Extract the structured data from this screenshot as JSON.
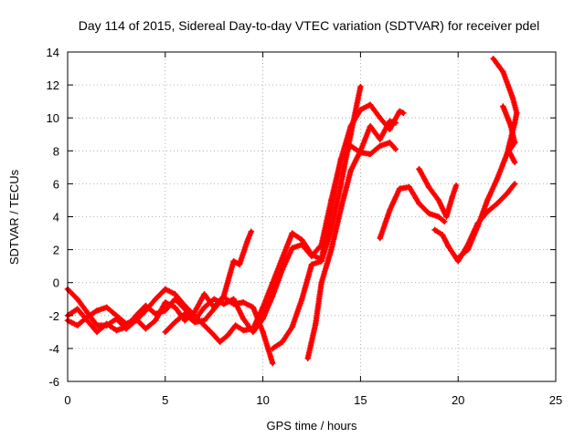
{
  "chart_data": {
    "type": "scatter",
    "title": "Day 114 of 2015, Sidereal Day-to-day VTEC variation (SDTVAR) for receiver pdel",
    "xlabel": "GPS time / hours",
    "ylabel": "SDTVAR / TECUs",
    "xlim": [
      0,
      25
    ],
    "ylim": [
      -6,
      14
    ],
    "xticks": [
      0,
      5,
      10,
      15,
      20,
      25
    ],
    "yticks": [
      -6,
      -4,
      -2,
      0,
      2,
      4,
      6,
      8,
      10,
      12,
      14
    ],
    "grid": true,
    "legend": "none",
    "marker": "plus",
    "color": "#ff0000",
    "series": [
      {
        "points": [
          [
            0.0,
            -0.4
          ],
          [
            0.5,
            -1.0
          ],
          [
            1.0,
            -1.8
          ],
          [
            1.5,
            -2.6
          ],
          [
            2.0,
            -2.6
          ],
          [
            2.5,
            -2.2
          ],
          [
            3.0,
            -2.8
          ],
          [
            3.5,
            -2.3
          ],
          [
            4.0,
            -1.7
          ],
          [
            4.5,
            -1.0
          ],
          [
            5.0,
            -0.4
          ],
          [
            5.5,
            -0.7
          ],
          [
            6.0,
            -1.4
          ],
          [
            6.5,
            -2.0
          ],
          [
            7.0,
            -2.6
          ],
          [
            7.5,
            -3.2
          ],
          [
            7.8,
            -3.6
          ],
          [
            8.2,
            -3.2
          ],
          [
            8.6,
            -2.6
          ],
          [
            9.0,
            -2.9
          ],
          [
            9.5,
            -2.8
          ],
          [
            10.0,
            -1.5
          ],
          [
            10.5,
            0.0
          ],
          [
            11.0,
            1.5
          ],
          [
            11.5,
            3.0
          ],
          [
            12.0,
            2.6
          ],
          [
            12.5,
            1.7
          ],
          [
            13.0,
            1.4
          ],
          [
            13.5,
            4.5
          ],
          [
            14.0,
            7.5
          ],
          [
            14.5,
            9.5
          ],
          [
            15.0,
            10.5
          ],
          [
            15.5,
            10.8
          ],
          [
            16.0,
            10.0
          ],
          [
            16.5,
            9.3
          ],
          [
            17.0,
            10.4
          ],
          [
            17.2,
            10.3
          ]
        ]
      },
      {
        "points": [
          [
            0.0,
            -2.0
          ],
          [
            0.5,
            -1.6
          ],
          [
            1.0,
            -2.3
          ],
          [
            1.5,
            -3.0
          ],
          [
            2.0,
            -2.5
          ],
          [
            2.5,
            -2.9
          ],
          [
            3.0,
            -2.7
          ],
          [
            3.5,
            -2.0
          ],
          [
            4.0,
            -1.4
          ],
          [
            4.5,
            -1.9
          ],
          [
            5.0,
            -1.7
          ],
          [
            5.5,
            -1.0
          ],
          [
            6.0,
            -1.6
          ],
          [
            6.5,
            -2.3
          ],
          [
            7.0,
            -1.5
          ],
          [
            7.5,
            -1.0
          ],
          [
            8.0,
            -1.3
          ],
          [
            8.5,
            -1.0
          ],
          [
            9.0,
            -2.2
          ],
          [
            9.5,
            -3.0
          ],
          [
            10.0,
            -2.2
          ],
          [
            10.5,
            -0.8
          ],
          [
            11.0,
            0.8
          ],
          [
            11.5,
            2.1
          ],
          [
            12.0,
            2.3
          ],
          [
            12.5,
            1.6
          ],
          [
            13.0,
            2.3
          ],
          [
            13.5,
            5.0
          ],
          [
            14.0,
            7.5
          ],
          [
            14.5,
            8.3
          ],
          [
            15.0,
            7.9
          ],
          [
            15.5,
            7.8
          ],
          [
            16.0,
            8.3
          ],
          [
            16.5,
            8.5
          ],
          [
            16.8,
            8.1
          ]
        ]
      },
      {
        "points": [
          [
            0.0,
            -2.3
          ],
          [
            0.5,
            -2.6
          ],
          [
            1.0,
            -2.1
          ],
          [
            1.5,
            -1.7
          ],
          [
            2.0,
            -1.5
          ],
          [
            2.5,
            -2.0
          ],
          [
            3.0,
            -2.5
          ],
          [
            3.5,
            -2.2
          ],
          [
            4.0,
            -2.8
          ],
          [
            4.5,
            -2.3
          ],
          [
            5.0,
            -1.2
          ],
          [
            5.5,
            -1.5
          ],
          [
            6.0,
            -2.3
          ],
          [
            6.5,
            -1.8
          ],
          [
            7.0,
            -0.7
          ],
          [
            7.5,
            -1.5
          ],
          [
            8.0,
            -0.8
          ],
          [
            8.5,
            1.3
          ],
          [
            8.8,
            1.1
          ],
          [
            9.2,
            2.5
          ],
          [
            9.4,
            3.1
          ]
        ]
      },
      {
        "points": [
          [
            5.0,
            -3.0
          ],
          [
            5.5,
            -2.4
          ],
          [
            6.0,
            -1.9
          ],
          [
            6.5,
            -2.4
          ],
          [
            7.0,
            -2.3
          ],
          [
            7.5,
            -1.6
          ],
          [
            8.0,
            -0.9
          ],
          [
            8.5,
            -1.3
          ],
          [
            9.0,
            -1.2
          ],
          [
            9.5,
            -1.5
          ],
          [
            10.0,
            -3.0
          ],
          [
            10.5,
            -4.9
          ]
        ]
      },
      {
        "points": [
          [
            10.5,
            -4.0
          ],
          [
            11.0,
            -3.6
          ],
          [
            11.5,
            -2.7
          ],
          [
            12.0,
            -1.0
          ],
          [
            12.5,
            1.1
          ],
          [
            13.0,
            1.3
          ],
          [
            13.5,
            3.2
          ],
          [
            14.0,
            6.0
          ],
          [
            14.5,
            9.0
          ],
          [
            15.0,
            11.9
          ]
        ]
      },
      {
        "points": [
          [
            12.3,
            -4.6
          ],
          [
            12.7,
            -2.5
          ],
          [
            13.0,
            0.0
          ],
          [
            13.5,
            2.0
          ],
          [
            14.0,
            4.5
          ],
          [
            14.5,
            6.8
          ],
          [
            15.0,
            8.0
          ],
          [
            15.5,
            9.5
          ],
          [
            16.0,
            8.7
          ],
          [
            16.5,
            9.8
          ],
          [
            16.8,
            9.7
          ]
        ]
      },
      {
        "points": [
          [
            16.0,
            2.7
          ],
          [
            16.5,
            4.4
          ],
          [
            17.0,
            5.7
          ],
          [
            17.5,
            5.8
          ],
          [
            18.0,
            4.8
          ],
          [
            18.5,
            4.2
          ],
          [
            19.0,
            4.0
          ],
          [
            19.3,
            3.7
          ]
        ]
      },
      {
        "points": [
          [
            18.0,
            6.9
          ],
          [
            18.5,
            5.8
          ],
          [
            19.0,
            5.0
          ],
          [
            19.4,
            4.0
          ],
          [
            19.7,
            5.2
          ],
          [
            19.9,
            5.9
          ]
        ]
      },
      {
        "points": [
          [
            18.8,
            3.2
          ],
          [
            19.2,
            2.9
          ],
          [
            19.5,
            2.2
          ],
          [
            20.0,
            1.3
          ],
          [
            20.5,
            2.3
          ],
          [
            21.0,
            3.6
          ],
          [
            21.5,
            4.3
          ],
          [
            22.0,
            4.8
          ],
          [
            22.5,
            5.4
          ],
          [
            22.9,
            6.0
          ]
        ]
      },
      {
        "points": [
          [
            20.0,
            1.5
          ],
          [
            20.5,
            2.0
          ],
          [
            21.0,
            3.4
          ],
          [
            21.5,
            5.0
          ],
          [
            22.0,
            6.3
          ],
          [
            22.5,
            7.8
          ],
          [
            22.9,
            9.7
          ],
          [
            23.0,
            10.3
          ],
          [
            22.8,
            11.2
          ],
          [
            22.3,
            12.8
          ],
          [
            21.8,
            13.6
          ]
        ]
      },
      {
        "points": [
          [
            22.3,
            10.7
          ],
          [
            22.7,
            9.5
          ],
          [
            22.9,
            8.5
          ],
          [
            22.6,
            8.0
          ],
          [
            22.9,
            7.3
          ]
        ]
      }
    ]
  }
}
